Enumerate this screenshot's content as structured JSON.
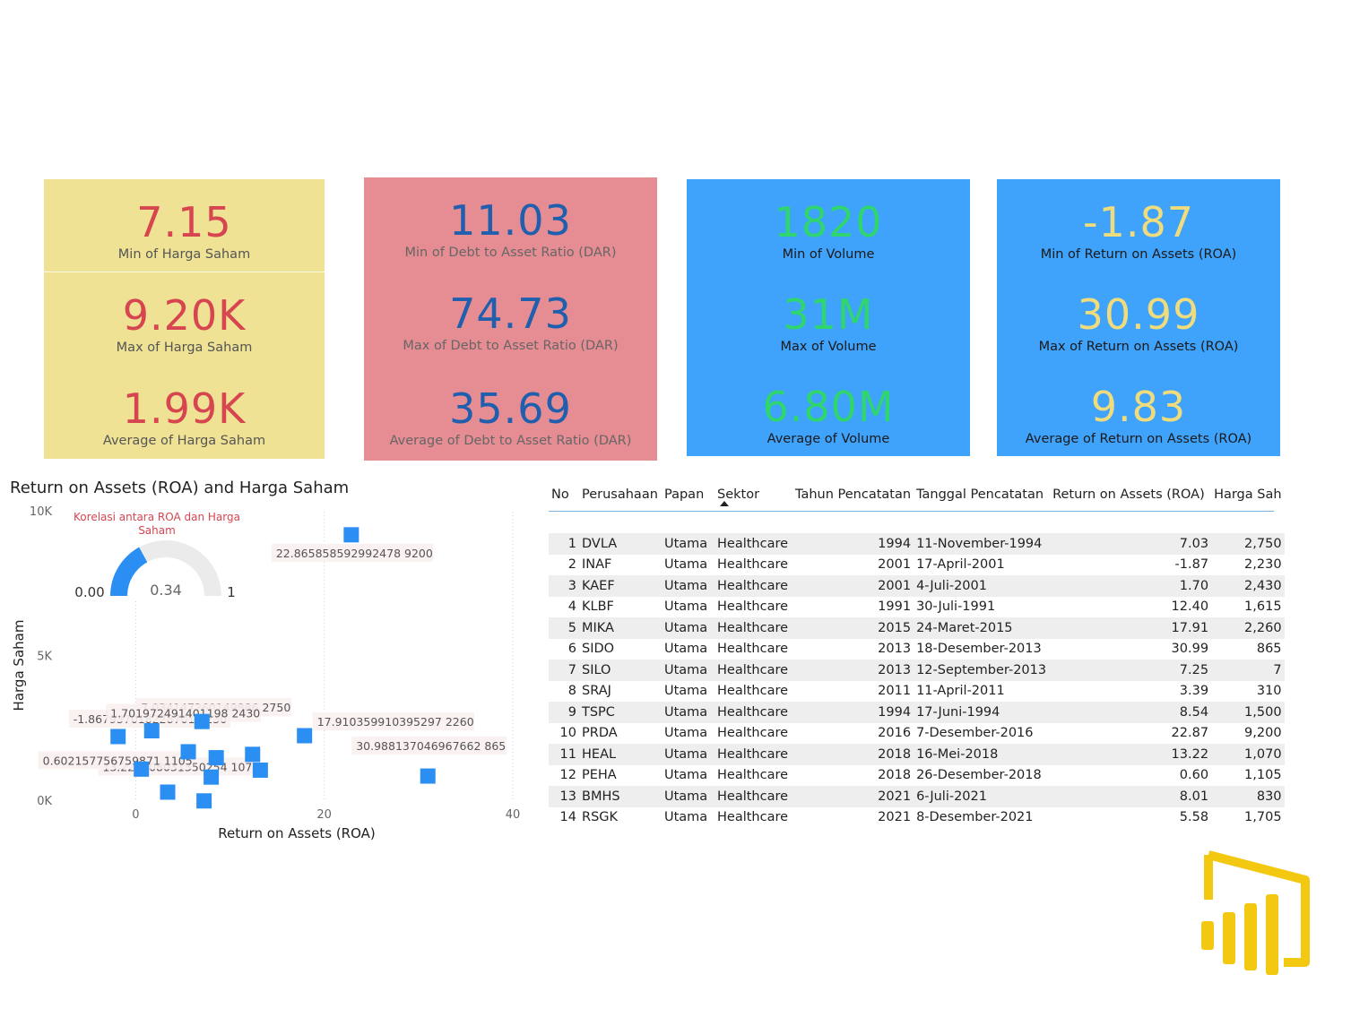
{
  "kpi_cards": [
    {
      "name": "harga-saham-card",
      "bg": "#efe294",
      "value_color": "#d64550",
      "label_color": "#555555",
      "items": [
        {
          "value": "7.15",
          "label": "Min of Harga Saham"
        },
        {
          "value": "9.20K",
          "label": "Max of Harga Saham"
        },
        {
          "value": "1.99K",
          "label": "Average of Harga Saham"
        }
      ]
    },
    {
      "name": "dar-card",
      "bg": "#e68c93",
      "value_color": "#1f5fae",
      "label_color": "#666666",
      "items": [
        {
          "value": "11.03",
          "label": "Min of Debt to Asset Ratio (DAR)"
        },
        {
          "value": "74.73",
          "label": "Max of Debt to Asset Ratio (DAR)"
        },
        {
          "value": "35.69",
          "label": "Average of Debt to Asset Ratio (DAR)"
        }
      ]
    },
    {
      "name": "volume-card",
      "bg": "#3fa2fb",
      "value_color": "#2fd66e",
      "label_color": "#1a1a1a",
      "items": [
        {
          "value": "1820",
          "label": "Min of Volume"
        },
        {
          "value": "31M",
          "label": "Max of Volume"
        },
        {
          "value": "6.80M",
          "label": "Average of Volume"
        }
      ]
    },
    {
      "name": "roa-card",
      "bg": "#3fa2fb",
      "value_color": "#f0dc7c",
      "label_color": "#1a1a1a",
      "items": [
        {
          "value": "-1.87",
          "label": "Min of Return on Assets (ROA)"
        },
        {
          "value": "30.99",
          "label": "Max of Return on Assets (ROA)"
        },
        {
          "value": "9.83",
          "label": "Average of Return on Assets (ROA)"
        }
      ]
    }
  ],
  "gauge": {
    "title": "Korelasi antara ROA dan Harga Saham",
    "value": 0.34,
    "value_label": "0.34",
    "min_label": "0.00",
    "max_label": "1",
    "fill_color": "#2b8ef3",
    "track_color": "#ebebeb"
  },
  "chart_data": {
    "type": "scatter",
    "title": "Return on Assets (ROA) and Harga Saham",
    "xlabel": "Return on Assets (ROA)",
    "ylabel": "Harga Saham",
    "xlim": [
      -8.5,
      42
    ],
    "ylim": [
      0,
      10000
    ],
    "x_ticks": [
      0,
      20,
      40
    ],
    "y_ticks": [
      0,
      5000,
      10000
    ],
    "y_tick_labels": [
      "0K",
      "5K",
      "10K"
    ],
    "grid": true,
    "point_color": "#2b8ef3",
    "points": [
      {
        "x": 7.03,
        "y": 2750
      },
      {
        "x": -1.87,
        "y": 2230
      },
      {
        "x": 1.7,
        "y": 2430
      },
      {
        "x": 12.4,
        "y": 1615
      },
      {
        "x": 17.91,
        "y": 2260
      },
      {
        "x": 30.99,
        "y": 865
      },
      {
        "x": 7.25,
        "y": 7
      },
      {
        "x": 3.39,
        "y": 310
      },
      {
        "x": 8.54,
        "y": 1500
      },
      {
        "x": 22.87,
        "y": 9200
      },
      {
        "x": 13.22,
        "y": 1070
      },
      {
        "x": 0.6,
        "y": 1105
      },
      {
        "x": 8.01,
        "y": 830
      },
      {
        "x": 5.58,
        "y": 1705
      }
    ],
    "annotations": [
      {
        "text": "22.865858592992478 9200",
        "x": 22.87,
        "y": 9200
      },
      {
        "text": "7.034147260149886 2750",
        "x": 7.03,
        "y": 2750
      },
      {
        "text": "-1.867937018228701 2230",
        "x": -1.87,
        "y": 2230
      },
      {
        "text": "17.910359910395297 2260",
        "x": 17.91,
        "y": 2260
      },
      {
        "text": "1.701972491401198 2430",
        "x": 1.7,
        "y": 2430
      },
      {
        "text": "13.223108031350254 1070",
        "x": 13.22,
        "y": 1070
      },
      {
        "text": "30.988137046967662 865",
        "x": 30.99,
        "y": 865
      },
      {
        "text": "0.602157756759871 1105",
        "x": 0.6,
        "y": 1105
      }
    ]
  },
  "table": {
    "columns": [
      "No",
      "Perusahaan",
      "Papan",
      "Sektor",
      "Tahun Pencatatan",
      "Tanggal Pencatatan",
      "Return on Assets (ROA)",
      "Harga Sah"
    ],
    "rows": [
      [
        "1",
        "DVLA",
        "Utama",
        "Healthcare",
        "1994",
        "11-November-1994",
        "7.03",
        "2,750"
      ],
      [
        "2",
        "INAF",
        "Utama",
        "Healthcare",
        "2001",
        "17-April-2001",
        "-1.87",
        "2,230"
      ],
      [
        "3",
        "KAEF",
        "Utama",
        "Healthcare",
        "2001",
        "4-Juli-2001",
        "1.70",
        "2,430"
      ],
      [
        "4",
        "KLBF",
        "Utama",
        "Healthcare",
        "1991",
        "30-Juli-1991",
        "12.40",
        "1,615"
      ],
      [
        "5",
        "MIKA",
        "Utama",
        "Healthcare",
        "2015",
        "24-Maret-2015",
        "17.91",
        "2,260"
      ],
      [
        "6",
        "SIDO",
        "Utama",
        "Healthcare",
        "2013",
        "18-Desember-2013",
        "30.99",
        "865"
      ],
      [
        "7",
        "SILO",
        "Utama",
        "Healthcare",
        "2013",
        "12-September-2013",
        "7.25",
        "7"
      ],
      [
        "8",
        "SRAJ",
        "Utama",
        "Healthcare",
        "2011",
        "11-April-2011",
        "3.39",
        "310"
      ],
      [
        "9",
        "TSPC",
        "Utama",
        "Healthcare",
        "1994",
        "17-Juni-1994",
        "8.54",
        "1,500"
      ],
      [
        "10",
        "PRDA",
        "Utama",
        "Healthcare",
        "2016",
        "7-Desember-2016",
        "22.87",
        "9,200"
      ],
      [
        "11",
        "HEAL",
        "Utama",
        "Healthcare",
        "2018",
        "16-Mei-2018",
        "13.22",
        "1,070"
      ],
      [
        "12",
        "PEHA",
        "Utama",
        "Healthcare",
        "2018",
        "26-Desember-2018",
        "0.60",
        "1,105"
      ],
      [
        "13",
        "BMHS",
        "Utama",
        "Healthcare",
        "2021",
        "6-Juli-2021",
        "8.01",
        "830"
      ],
      [
        "14",
        "RSGK",
        "Utama",
        "Healthcare",
        "2021",
        "8-Desember-2021",
        "5.58",
        "1,705"
      ]
    ]
  },
  "logo": {
    "icon": "power-bi-logo-icon",
    "color": "#f2c811"
  }
}
